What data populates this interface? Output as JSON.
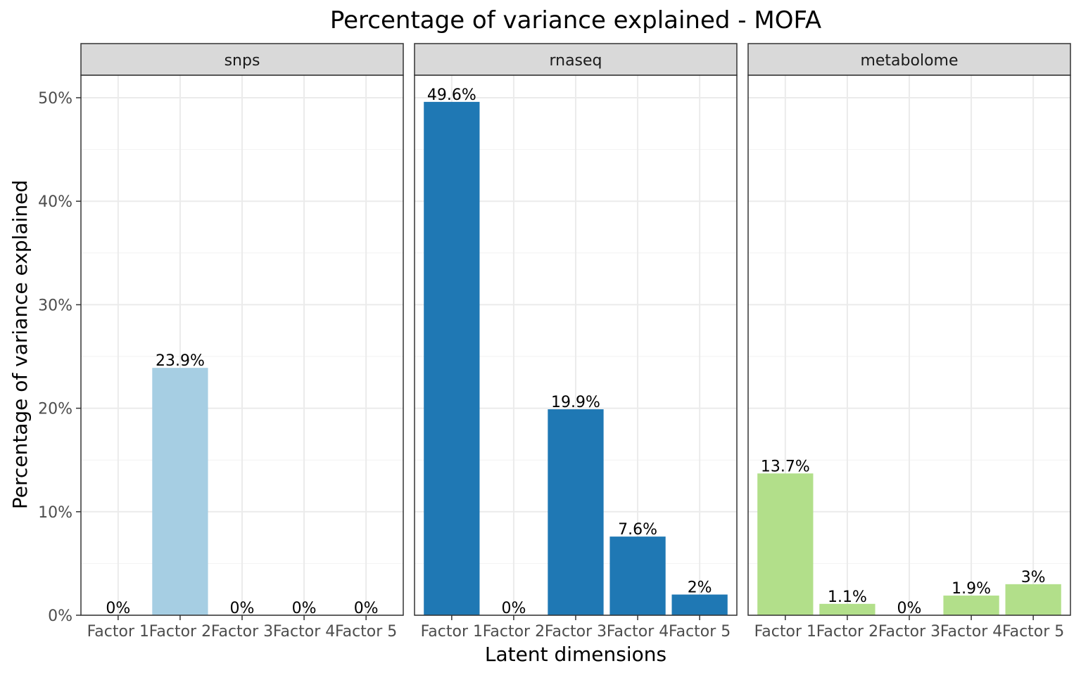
{
  "chart_data": {
    "type": "bar",
    "title": "Percentage of variance explained - MOFA",
    "xlabel": "Latent dimensions",
    "ylabel": "Percentage of variance explained",
    "ylim": [
      0,
      0.52
    ],
    "y_ticks": [
      0,
      0.1,
      0.2,
      0.3,
      0.4,
      0.5
    ],
    "y_tick_labels": [
      "0%",
      "10%",
      "20%",
      "30%",
      "40%",
      "50%"
    ],
    "grid": true,
    "legend": "none",
    "categories": [
      "Factor 1",
      "Factor 2",
      "Factor 3",
      "Factor 4",
      "Factor 5"
    ],
    "facets": [
      {
        "name": "snps",
        "color": "#a6cee3",
        "values": [
          0,
          0.239,
          0,
          0,
          0
        ],
        "labels": [
          "0%",
          "23.9%",
          "0%",
          "0%",
          "0%"
        ]
      },
      {
        "name": "rnaseq",
        "color": "#1f78b4",
        "values": [
          0.496,
          0,
          0.199,
          0.076,
          0.02
        ],
        "labels": [
          "49.6%",
          "0%",
          "19.9%",
          "7.6%",
          "2%"
        ]
      },
      {
        "name": "metabolome",
        "color": "#b2df8a",
        "values": [
          0.137,
          0.011,
          0,
          0.019,
          0.03
        ],
        "labels": [
          "13.7%",
          "1.1%",
          "0%",
          "1.9%",
          "3%"
        ]
      }
    ]
  }
}
